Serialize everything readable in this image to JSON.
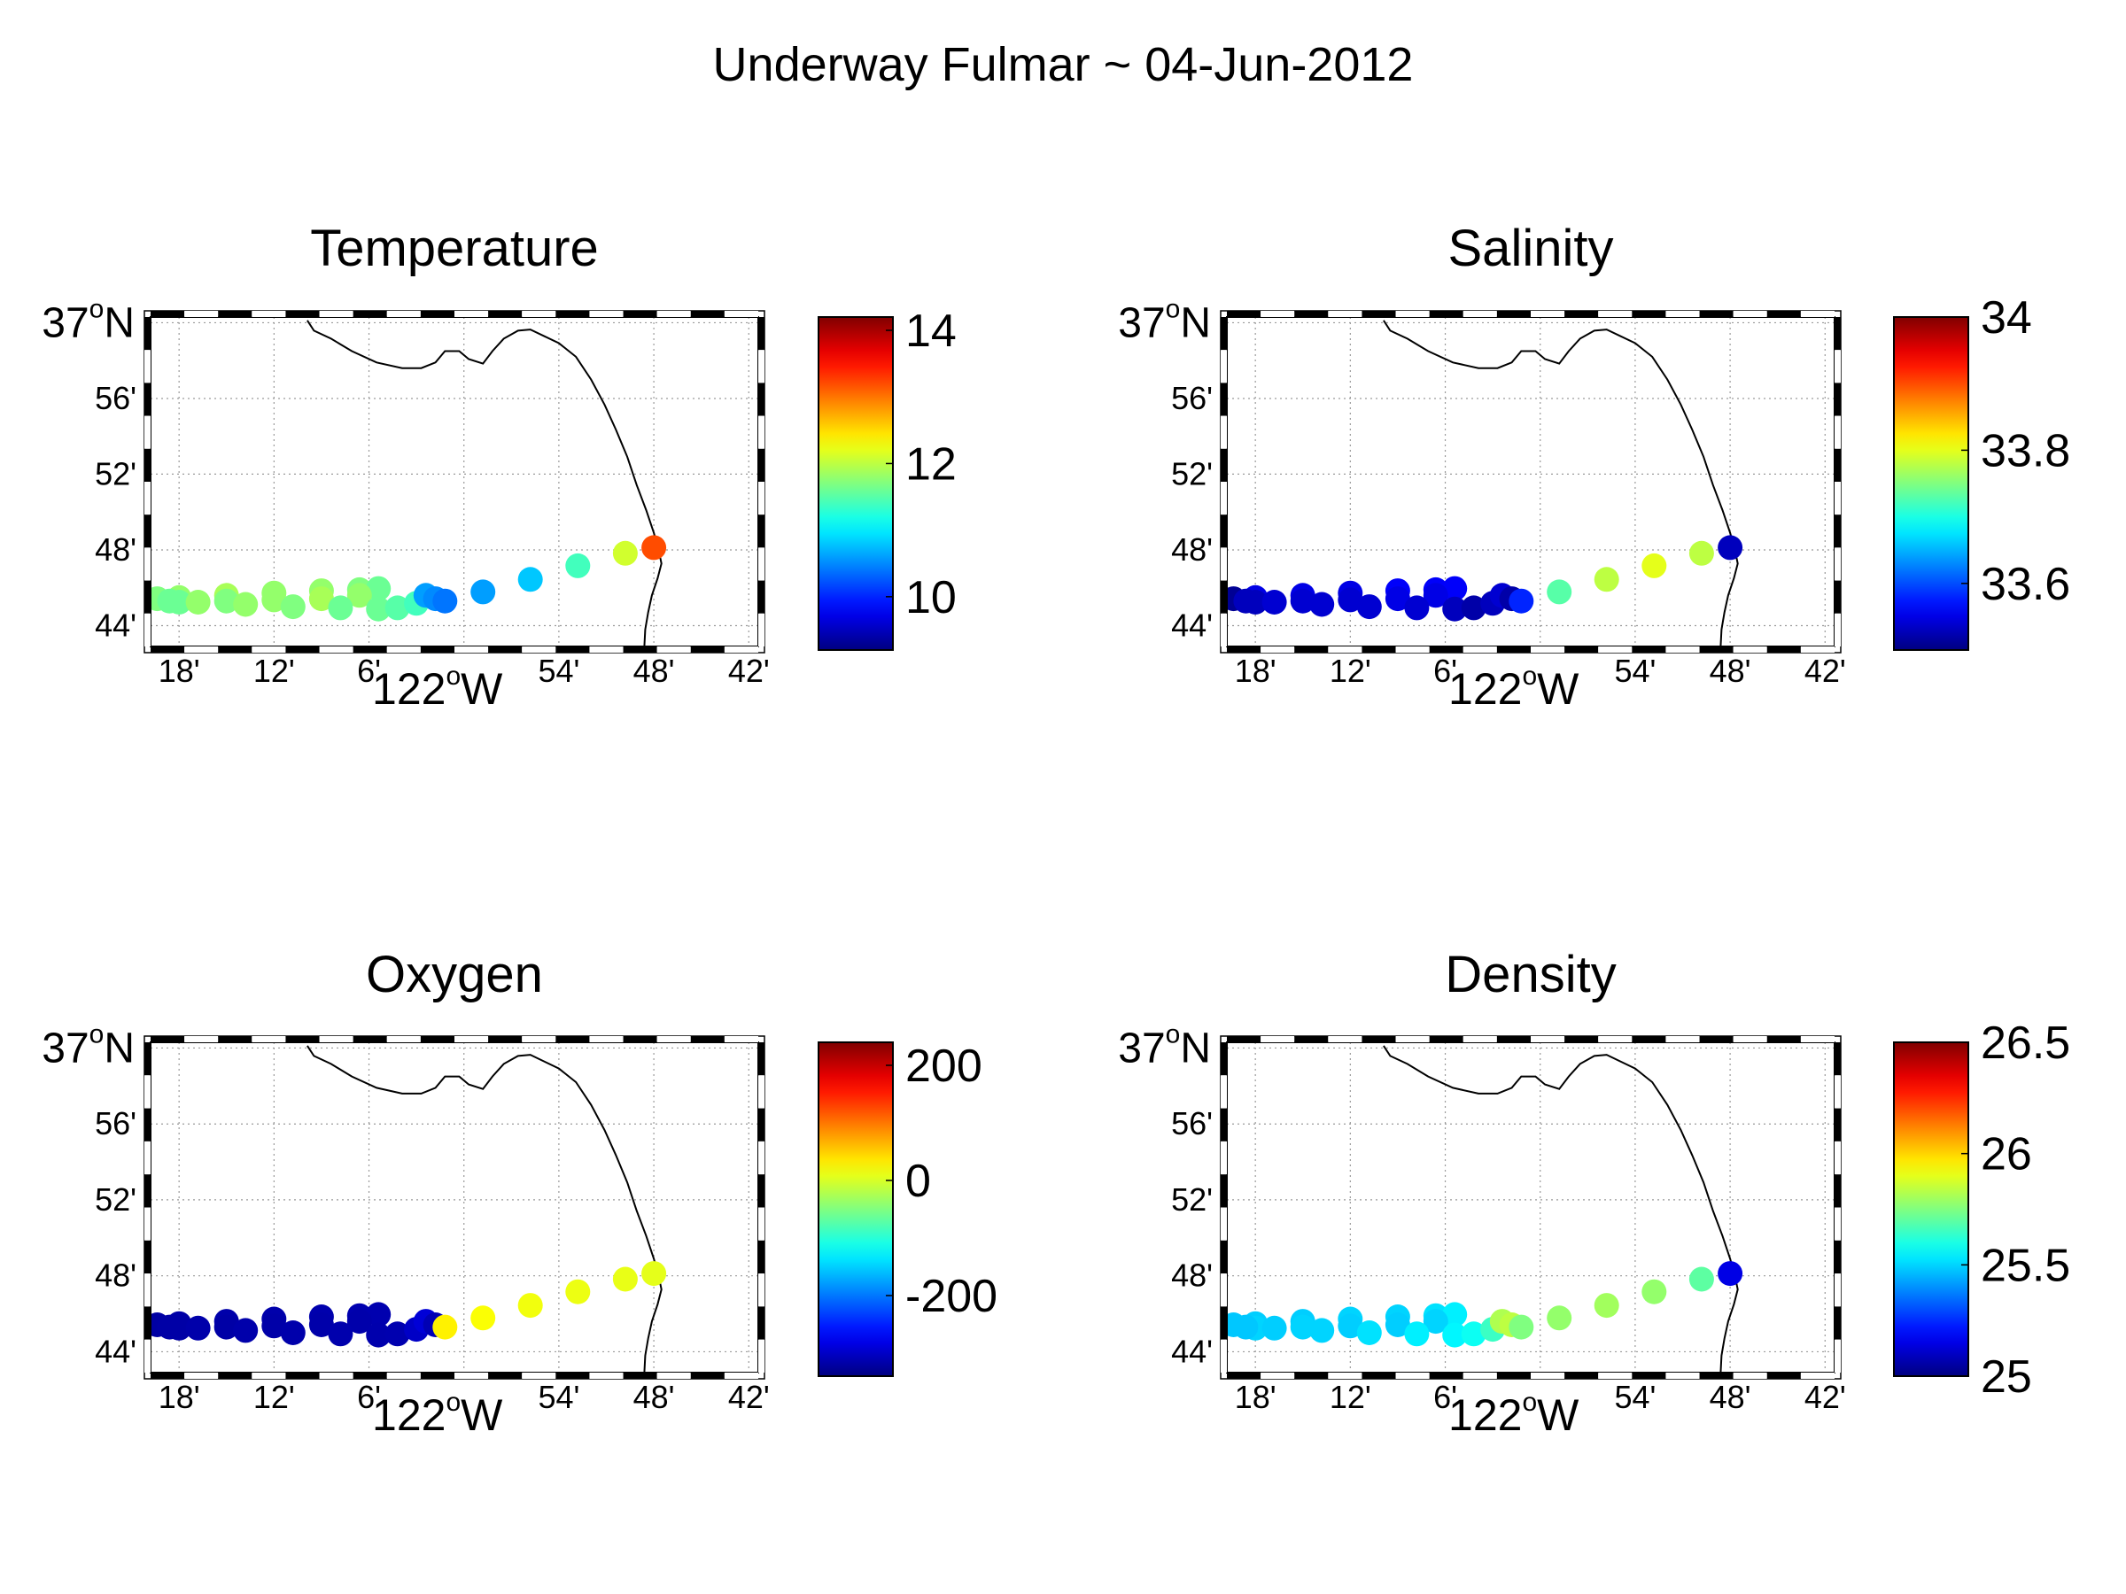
{
  "figure": {
    "title": "Underway Fulmar ~ 04-Jun-2012"
  },
  "map": {
    "lon_ticks": [
      {
        "value": -122.3,
        "label": "18'"
      },
      {
        "value": -122.2,
        "label": "12'"
      },
      {
        "value": -122.1,
        "label": "6'"
      },
      {
        "value": -122.0,
        "label": "122",
        "deg": "o",
        "suffix": "W"
      },
      {
        "value": -121.9,
        "label": "54'"
      },
      {
        "value": -121.8,
        "label": "48'"
      },
      {
        "value": -121.7,
        "label": "42'"
      }
    ],
    "lat_ticks": [
      {
        "value": 36.7333,
        "label": "44'"
      },
      {
        "value": 36.8,
        "label": "48'"
      },
      {
        "value": 36.8667,
        "label": "52'"
      },
      {
        "value": 36.9333,
        "label": "56'"
      },
      {
        "value": 37.0,
        "label": "37",
        "deg": "o",
        "suffix": "N"
      }
    ],
    "xlim": [
      -122.33,
      -121.69
    ],
    "ylim": [
      36.715,
      37.005
    ],
    "coastline": [
      [
        -122.165,
        37.002
      ],
      [
        -122.158,
        36.993
      ],
      [
        -122.14,
        36.986
      ],
      [
        -122.118,
        36.975
      ],
      [
        -122.092,
        36.965
      ],
      [
        -122.065,
        36.96
      ],
      [
        -122.045,
        36.96
      ],
      [
        -122.03,
        36.965
      ],
      [
        -122.02,
        36.975
      ],
      [
        -122.005,
        36.975
      ],
      [
        -121.995,
        36.968
      ],
      [
        -121.98,
        36.964
      ],
      [
        -121.97,
        36.975
      ],
      [
        -121.958,
        36.986
      ],
      [
        -121.943,
        36.993
      ],
      [
        -121.93,
        36.994
      ],
      [
        -121.915,
        36.988
      ],
      [
        -121.9,
        36.982
      ],
      [
        -121.882,
        36.97
      ],
      [
        -121.866,
        36.95
      ],
      [
        -121.852,
        36.928
      ],
      [
        -121.84,
        36.906
      ],
      [
        -121.828,
        36.882
      ],
      [
        -121.818,
        36.857
      ],
      [
        -121.808,
        36.835
      ],
      [
        -121.8,
        36.815
      ],
      [
        -121.795,
        36.8
      ],
      [
        -121.792,
        36.788
      ],
      [
        -121.796,
        36.775
      ],
      [
        -121.802,
        36.76
      ],
      [
        -121.806,
        36.745
      ],
      [
        -121.809,
        36.73
      ],
      [
        -121.81,
        36.715
      ]
    ],
    "track": [
      [
        -122.323,
        36.757
      ],
      [
        -122.3,
        36.758
      ],
      [
        -122.25,
        36.76
      ],
      [
        -122.2,
        36.762
      ],
      [
        -122.15,
        36.764
      ],
      [
        -122.11,
        36.765
      ],
      [
        -122.09,
        36.766
      ],
      [
        -122.11,
        36.76
      ],
      [
        -122.15,
        36.757
      ],
      [
        -122.2,
        36.756
      ],
      [
        -122.25,
        36.755
      ],
      [
        -122.3,
        36.754
      ],
      [
        -122.31,
        36.755
      ],
      [
        -122.28,
        36.754
      ],
      [
        -122.23,
        36.752
      ],
      [
        -122.18,
        36.75
      ],
      [
        -122.13,
        36.749
      ],
      [
        -122.09,
        36.748
      ],
      [
        -122.07,
        36.749
      ],
      [
        -122.05,
        36.753
      ],
      [
        -122.04,
        36.76
      ],
      [
        -122.03,
        36.757
      ],
      [
        -122.02,
        36.755
      ],
      [
        -121.98,
        36.763
      ],
      [
        -121.93,
        36.774
      ],
      [
        -121.88,
        36.786
      ],
      [
        -121.83,
        36.797
      ],
      [
        -121.8,
        36.802
      ]
    ]
  },
  "chart_data": [
    {
      "type": "scatter",
      "title": "Temperature",
      "colorbar": {
        "min": 9.2,
        "max": 14.2,
        "ticks": [
          {
            "value": 10,
            "label": "10"
          },
          {
            "value": 12,
            "label": "12"
          },
          {
            "value": 14,
            "label": "14"
          }
        ]
      },
      "values": [
        11.7,
        11.8,
        11.9,
        11.8,
        11.8,
        11.7,
        11.6,
        11.8,
        11.9,
        11.8,
        11.7,
        11.6,
        11.6,
        11.8,
        11.8,
        11.7,
        11.6,
        11.6,
        11.5,
        11.4,
        10.6,
        10.5,
        10.4,
        10.6,
        10.8,
        11.4,
        12.1,
        13.2
      ]
    },
    {
      "type": "scatter",
      "title": "Salinity",
      "colorbar": {
        "min": 33.5,
        "max": 34.0,
        "ticks": [
          {
            "value": 33.6,
            "label": "33.6"
          },
          {
            "value": 33.8,
            "label": "33.8"
          },
          {
            "value": 34.0,
            "label": "34"
          }
        ]
      },
      "values": [
        33.51,
        33.55,
        33.55,
        33.55,
        33.56,
        33.56,
        33.56,
        33.55,
        33.55,
        33.54,
        33.54,
        33.53,
        33.53,
        33.54,
        33.54,
        33.54,
        33.54,
        33.53,
        33.52,
        33.53,
        33.54,
        33.52,
        33.58,
        33.73,
        33.78,
        33.8,
        33.78,
        33.53
      ]
    },
    {
      "type": "scatter",
      "title": "Oxygen",
      "colorbar": {
        "min": -340,
        "max": 240,
        "ticks": [
          {
            "value": -200,
            "label": "-200"
          },
          {
            "value": 0,
            "label": "0"
          },
          {
            "value": 200,
            "label": "200"
          }
        ]
      },
      "values": [
        -320,
        -318,
        -316,
        -315,
        -314,
        -313,
        -313,
        -315,
        -316,
        -317,
        -318,
        -318,
        -318,
        -316,
        -315,
        -315,
        -314,
        -314,
        -313,
        -300,
        -290,
        -310,
        30,
        20,
        15,
        12,
        10,
        8
      ]
    },
    {
      "type": "scatter",
      "title": "Density",
      "colorbar": {
        "min": 25.0,
        "max": 26.5,
        "ticks": [
          {
            "value": 25.0,
            "label": "25"
          },
          {
            "value": 25.5,
            "label": "25.5"
          },
          {
            "value": 26.0,
            "label": "26"
          },
          {
            "value": 26.5,
            "label": "26.5"
          }
        ]
      },
      "values": [
        25.48,
        25.49,
        25.49,
        25.5,
        25.5,
        25.52,
        25.54,
        25.5,
        25.49,
        25.49,
        25.5,
        25.5,
        25.48,
        25.49,
        25.5,
        25.52,
        25.54,
        25.55,
        25.58,
        25.65,
        25.82,
        25.84,
        25.75,
        25.78,
        25.8,
        25.78,
        25.7,
        25.15
      ]
    }
  ]
}
